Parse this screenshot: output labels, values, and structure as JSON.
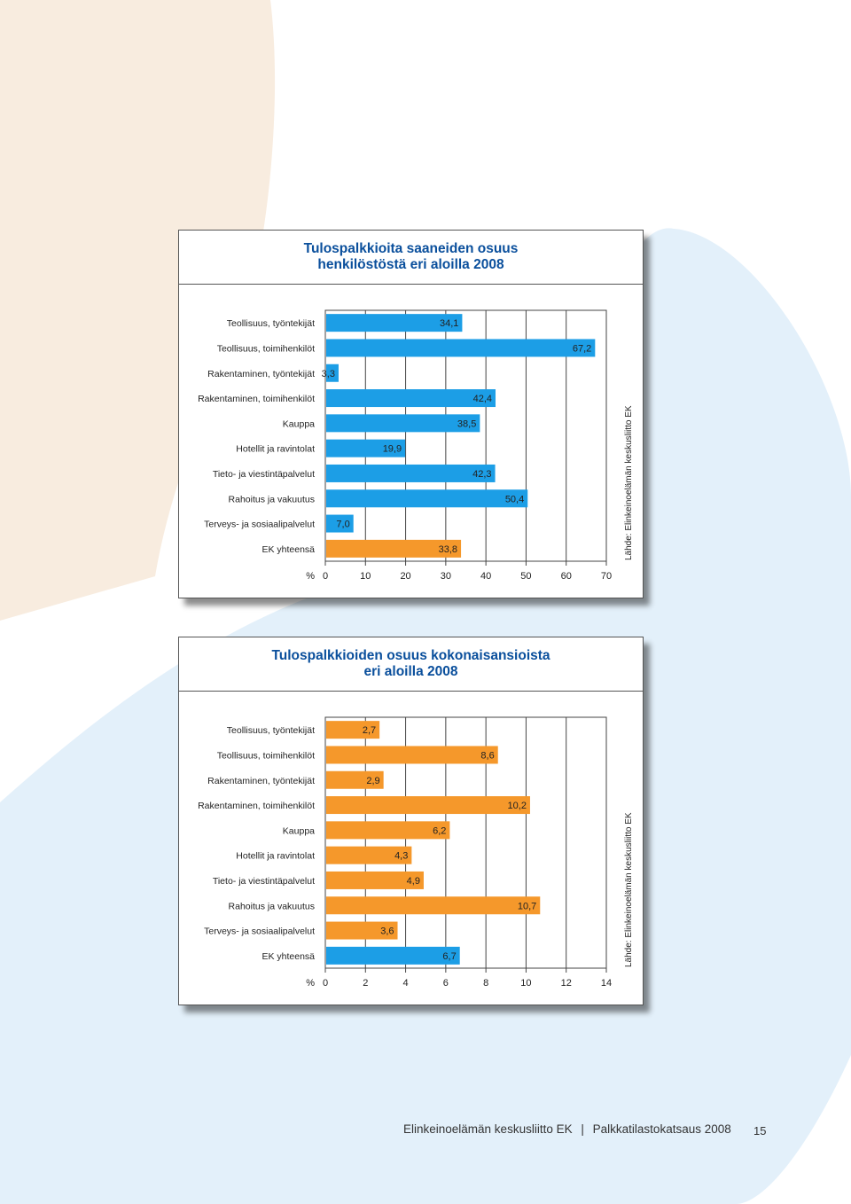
{
  "colors": {
    "blue": "#1c9ee6",
    "orange": "#f5982b",
    "title": "#0a4f9c",
    "bg_peach": "#f8ecdf",
    "bg_lightblue": "#e3f0fa"
  },
  "footer": {
    "publisher": "Elinkeinoelämän keskusliitto EK",
    "separator": "|",
    "publication": "Palkkatilastokatsaus 2008",
    "page_number": "15"
  },
  "chart_data": [
    {
      "type": "bar",
      "orientation": "horizontal",
      "title": "Tulospalkkioita saaneiden osuus henkilöstöstä eri aloilla 2008",
      "title_lines": [
        "Tulospalkkioita saaneiden osuus",
        "henkilöstöstä eri aloilla 2008"
      ],
      "unit_label": "%",
      "source": "Lähde: Elinkeinoelämän keskusliitto EK",
      "xlim": [
        0,
        70
      ],
      "ticks": [
        0,
        10,
        20,
        30,
        40,
        50,
        60,
        70
      ],
      "grid": true,
      "categories": [
        "Teollisuus, työntekijät",
        "Teollisuus, toimihenkilöt",
        "Rakentaminen, työntekijät",
        "Rakentaminen, toimihenkilöt",
        "Kauppa",
        "Hotellit ja ravintolat",
        "Tieto- ja viestintäpalvelut",
        "Rahoitus ja vakuutus",
        "Terveys- ja sosiaalipalvelut",
        "EK yhteensä"
      ],
      "values": [
        34.1,
        67.2,
        3.3,
        42.4,
        38.5,
        19.9,
        42.3,
        50.4,
        7.0,
        33.8
      ],
      "value_labels": [
        "34,1",
        "67,2",
        "3,3",
        "42,4",
        "38,5",
        "19,9",
        "42,3",
        "50,4",
        "7,0",
        "33,8"
      ],
      "bar_colors": [
        "#1c9ee6",
        "#1c9ee6",
        "#1c9ee6",
        "#1c9ee6",
        "#1c9ee6",
        "#1c9ee6",
        "#1c9ee6",
        "#1c9ee6",
        "#1c9ee6",
        "#f5982b"
      ]
    },
    {
      "type": "bar",
      "orientation": "horizontal",
      "title": "Tulospalkkioiden osuus kokonaisansioista eri aloilla 2008",
      "title_lines": [
        "Tulospalkkioiden osuus kokonaisansioista",
        "eri aloilla 2008"
      ],
      "unit_label": "%",
      "source": "Lähde: Elinkeinoelämän keskusliitto EK",
      "xlim": [
        0,
        14
      ],
      "ticks": [
        0,
        2,
        4,
        6,
        8,
        10,
        12,
        14
      ],
      "grid": true,
      "categories": [
        "Teollisuus, työntekijät",
        "Teollisuus, toimihenkilöt",
        "Rakentaminen, työntekijät",
        "Rakentaminen, toimihenkilöt",
        "Kauppa",
        "Hotellit ja ravintolat",
        "Tieto- ja viestintäpalvelut",
        "Rahoitus ja vakuutus",
        "Terveys- ja sosiaalipalvelut",
        "EK yhteensä"
      ],
      "values": [
        2.7,
        8.6,
        2.9,
        10.2,
        6.2,
        4.3,
        4.9,
        10.7,
        3.6,
        6.7
      ],
      "value_labels": [
        "2,7",
        "8,6",
        "2,9",
        "10,2",
        "6,2",
        "4,3",
        "4,9",
        "10,7",
        "3,6",
        "6,7"
      ],
      "bar_colors": [
        "#f5982b",
        "#f5982b",
        "#f5982b",
        "#f5982b",
        "#f5982b",
        "#f5982b",
        "#f5982b",
        "#f5982b",
        "#f5982b",
        "#1c9ee6"
      ]
    }
  ]
}
